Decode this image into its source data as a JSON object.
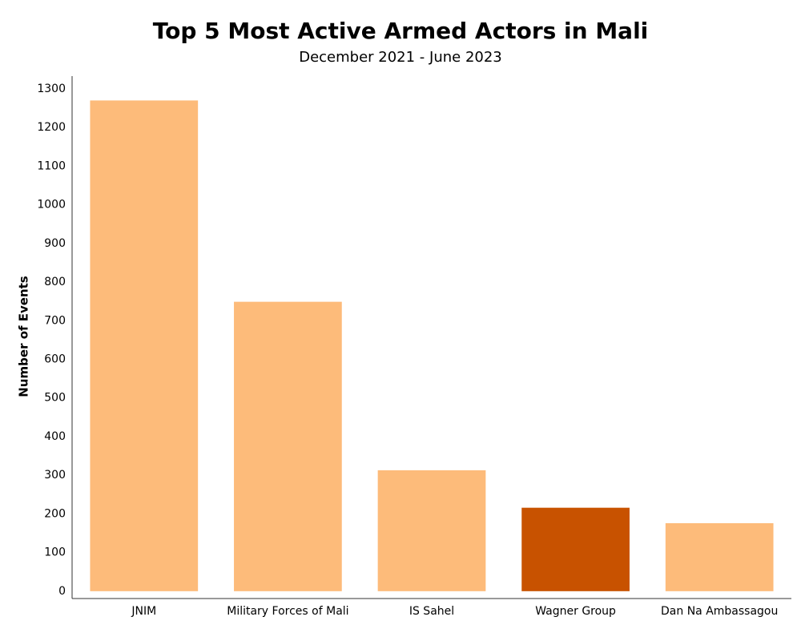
{
  "chart_data": {
    "type": "bar",
    "title": "Top 5 Most Active Armed Actors in Mali",
    "subtitle": "December 2021 - June 2023",
    "y_label": "Number of Events",
    "categories": [
      "JNIM",
      "Military Forces of Mali",
      "IS Sahel",
      "Wagner Group",
      "Dan Na Ambassagou"
    ],
    "values": [
      1270,
      749,
      313,
      216,
      176
    ],
    "colors": [
      "#fdbb7a",
      "#fdbb7a",
      "#fdbb7a",
      "#c85200",
      "#fdbb7a"
    ],
    "ylim": [
      -19,
      1333
    ],
    "yticks": [
      0,
      100,
      200,
      300,
      400,
      500,
      600,
      700,
      800,
      900,
      1000,
      1100,
      1200,
      1300
    ],
    "grid": false
  }
}
